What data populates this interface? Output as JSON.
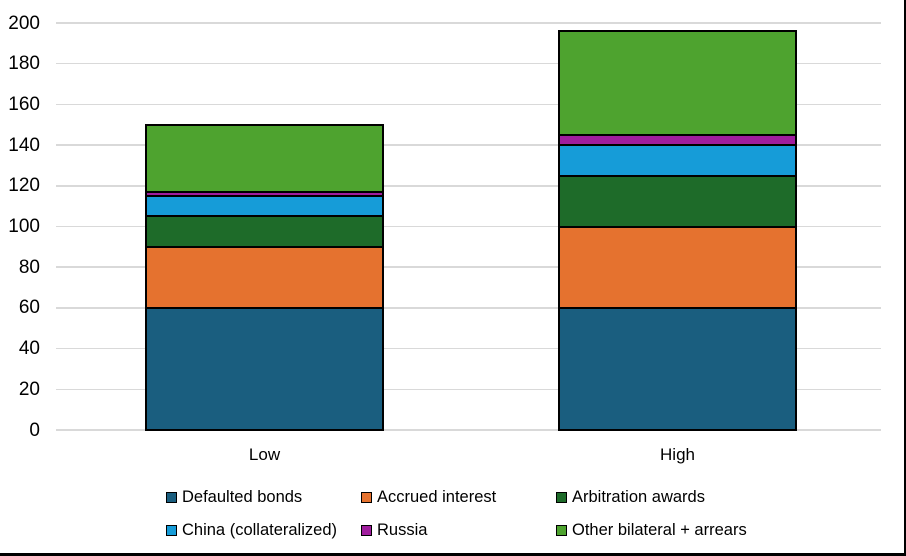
{
  "chart_data": {
    "type": "bar",
    "stacked": true,
    "title": "",
    "categories": [
      "Low",
      "High"
    ],
    "series": [
      {
        "name": "Defaulted bonds",
        "color": "#1A5E7F",
        "values": [
          60,
          60
        ]
      },
      {
        "name": "Accrued interest",
        "color": "#E5722F",
        "values": [
          30,
          40
        ]
      },
      {
        "name": "Arbitration awards",
        "color": "#1E6B29",
        "values": [
          15,
          25
        ]
      },
      {
        "name": "China (collateralized)",
        "color": "#169CD8",
        "values": [
          10,
          15
        ]
      },
      {
        "name": "Russia",
        "color": "#A01D9E",
        "values": [
          2,
          5
        ]
      },
      {
        "name": "Other bilateral + arrears",
        "color": "#4EA32F",
        "values": [
          33,
          51
        ]
      }
    ],
    "totals": [
      150,
      196
    ],
    "ylim": [
      0,
      200
    ],
    "yticks": [
      0,
      20,
      40,
      60,
      80,
      100,
      120,
      140,
      160,
      180,
      200
    ],
    "grid": true,
    "legend_position": "bottom",
    "legend_rows": [
      [
        0,
        1,
        2
      ],
      [
        3,
        4,
        5
      ]
    ]
  },
  "styles": {
    "background": "#FFFFFF",
    "gridline_color": "#D9D9D9",
    "bar_border_color": "#000000",
    "text_color": "#000000",
    "frame_border_color": "#000000"
  }
}
